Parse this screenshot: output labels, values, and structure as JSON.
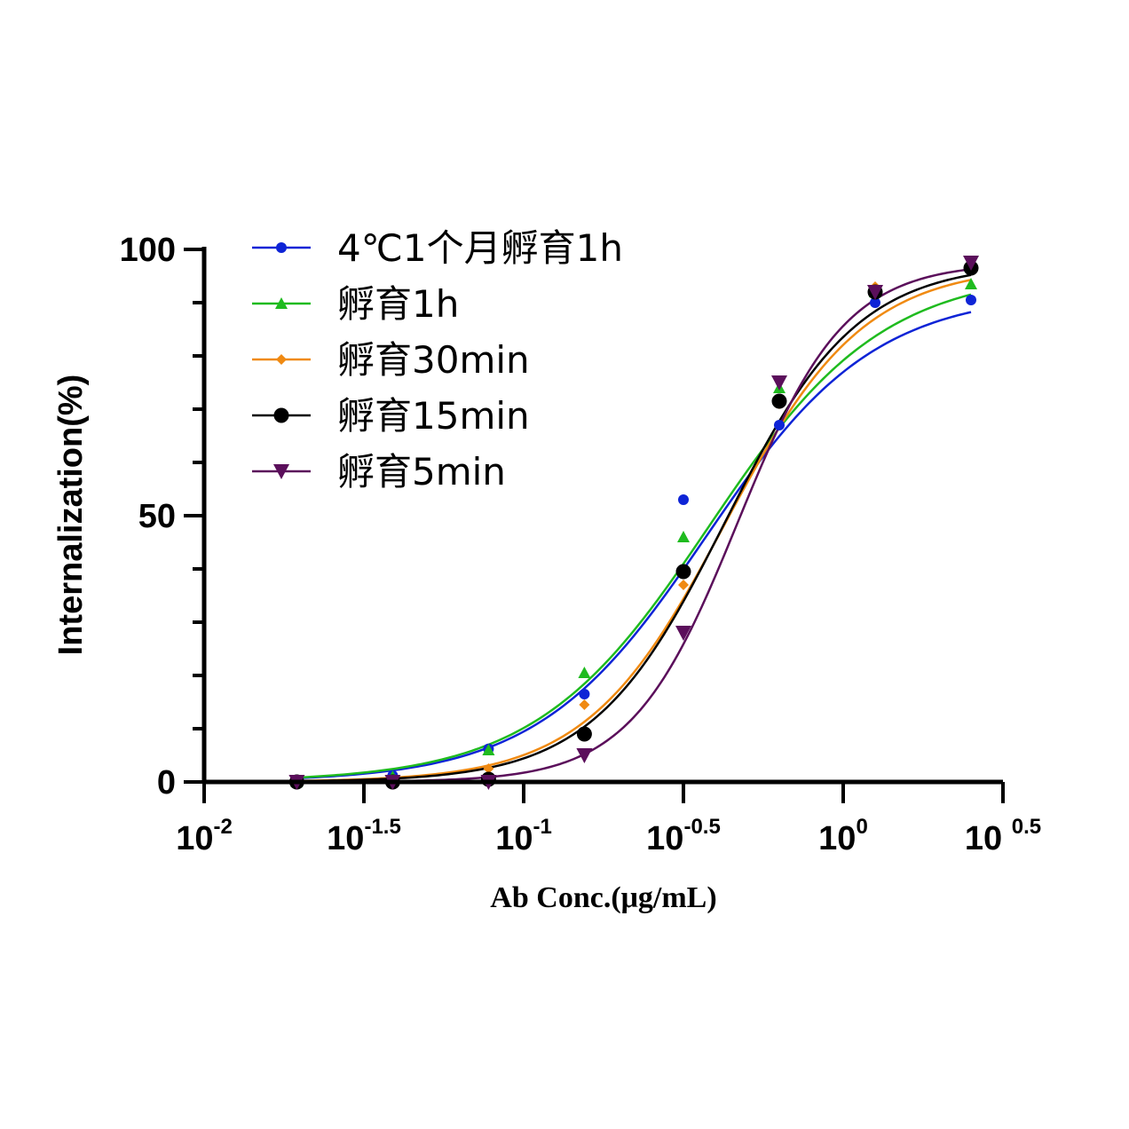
{
  "chart_data": {
    "type": "scatter",
    "title": "",
    "xlabel": "Ab Conc.(μg/mL)",
    "ylabel": "Internalization(%)",
    "xscale": "log10",
    "xlim_log10": [
      -2,
      0.5
    ],
    "ylim": [
      0,
      100
    ],
    "yticks": [
      {
        "value": 0,
        "label": "0"
      },
      {
        "value": 50,
        "label": "50"
      },
      {
        "value": 100,
        "label": "100"
      }
    ],
    "xticks": [
      {
        "value": -2,
        "base": "10",
        "exp": "-2"
      },
      {
        "value": -1.5,
        "base": "10",
        "exp": "-1.5"
      },
      {
        "value": -1,
        "base": "10",
        "exp": "-1"
      },
      {
        "value": -0.5,
        "base": "10",
        "exp": "-0.5"
      },
      {
        "value": 0,
        "base": "10",
        "exp": "0"
      },
      {
        "value": 0.5,
        "base": "10 ",
        "exp": "0.5"
      }
    ],
    "x_log10": [
      -1.71,
      -1.41,
      -1.11,
      -0.81,
      -0.5,
      -0.2,
      0.1,
      0.4
    ],
    "legend_position": "top-left",
    "series": [
      {
        "name": "4℃1个月孵育1h",
        "color": "#0e24d6",
        "marker": "circle",
        "values": [
          0,
          1.2,
          6.2,
          16.5,
          53,
          67,
          90,
          90.5
        ],
        "fit": {
          "bottom": 0,
          "top": 92,
          "logEC50": -0.43,
          "hill": 1.65
        }
      },
      {
        "name": "孵育1h",
        "color": "#1fbb1f",
        "marker": "triangle-up",
        "values": [
          0,
          1.0,
          6.0,
          20.5,
          46,
          74,
          92,
          93.5
        ],
        "fit": {
          "bottom": 0,
          "top": 96,
          "logEC50": -0.42,
          "hill": 1.6
        }
      },
      {
        "name": "孵育30min",
        "color": "#f08a12",
        "marker": "diamond",
        "values": [
          0,
          0,
          2.5,
          14.5,
          37,
          71,
          93,
          96.5
        ],
        "fit": {
          "bottom": 0,
          "top": 97,
          "logEC50": -0.37,
          "hill": 2.0
        }
      },
      {
        "name": "孵育15min",
        "color": "#000000",
        "marker": "circle-large",
        "values": [
          0,
          0,
          0.5,
          9,
          39.5,
          71.5,
          92,
          96.5
        ],
        "fit": {
          "bottom": 0,
          "top": 97.5,
          "logEC50": -0.37,
          "hill": 2.1
        }
      },
      {
        "name": "孵育5min",
        "color": "#5b0f5b",
        "marker": "triangle-down",
        "values": [
          0,
          0,
          0,
          5,
          28,
          75,
          92,
          97.5
        ],
        "fit": {
          "bottom": 0,
          "top": 97.5,
          "logEC50": -0.33,
          "hill": 2.6
        }
      }
    ]
  }
}
